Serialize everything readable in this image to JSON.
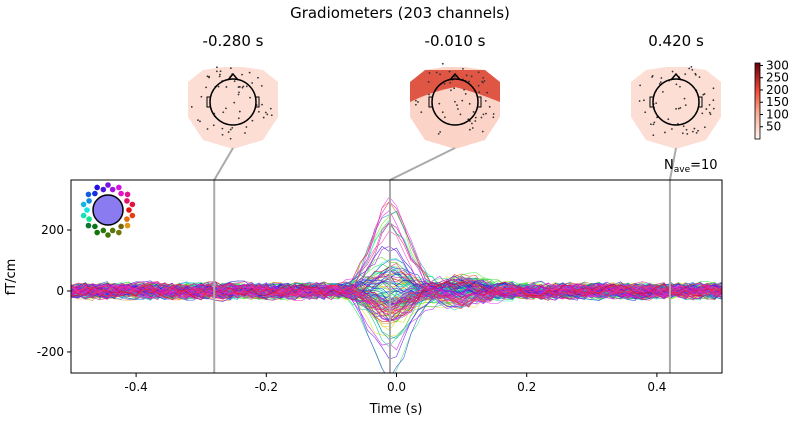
{
  "chart_data": {
    "type": "line",
    "title": "Gradiometers (203 channels)",
    "xlabel": "Time (s)",
    "ylabel": "fT/cm",
    "xlim": [
      -0.5,
      0.5
    ],
    "ylim": [
      -269,
      364
    ],
    "xticks": [
      "-0.4",
      "-0.2",
      "0.0",
      "0.2",
      "0.4"
    ],
    "xtick_values": [
      -0.4,
      -0.2,
      0.0,
      0.2,
      0.4
    ],
    "yticks": [
      "200",
      "0",
      "-200"
    ],
    "ytick_values": [
      200,
      0,
      -200
    ],
    "n_channels": 203,
    "nave_label": "N",
    "nave_sub": "ave",
    "nave_value": "=10",
    "baseline_noise_range": [
      -70,
      70
    ],
    "peak_time": -0.01,
    "peak_range": [
      -220,
      335
    ],
    "topomaps": [
      {
        "label": "-0.280 s",
        "time": -0.28,
        "intensity": 0.25
      },
      {
        "label": "-0.010 s",
        "time": -0.01,
        "intensity": 0.9
      },
      {
        "label": "0.420 s",
        "time": 0.42,
        "intensity": 0.25
      }
    ],
    "colorbar": {
      "ticks": [
        "300",
        "250",
        "200",
        "150",
        "100",
        "50"
      ],
      "tick_values": [
        300,
        250,
        200,
        150,
        100,
        50
      ],
      "range": [
        0,
        310
      ],
      "colormap": "Reds"
    },
    "grid": false,
    "legend": "sensor-position color key, top-left"
  }
}
